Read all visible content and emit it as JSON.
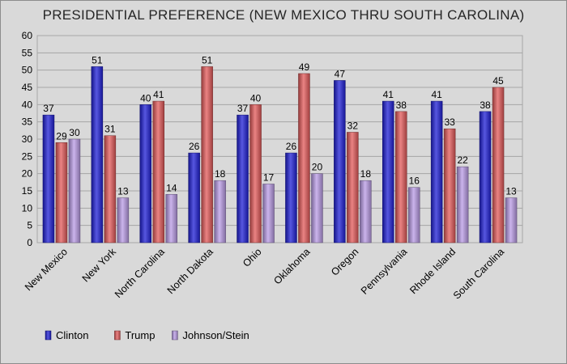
{
  "chart_data": {
    "type": "bar",
    "title": "PRESIDENTIAL PREFERENCE (NEW MEXICO THRU SOUTH CAROLINA)",
    "xlabel": "",
    "ylabel": "",
    "ylim": [
      0,
      60
    ],
    "yticks": [
      0,
      5,
      10,
      15,
      20,
      25,
      30,
      35,
      40,
      45,
      50,
      55,
      60
    ],
    "grid": true,
    "legend_position": "bottom-left",
    "categories": [
      "New Mexico",
      "New York",
      "North Carolina",
      "North Dakota",
      "Ohio",
      "Oklahoma",
      "Oregon",
      "Pennsylvania",
      "Rhode Island",
      "South Carolina"
    ],
    "series": [
      {
        "name": "Clinton",
        "color": "#1f1fd6",
        "values": [
          37,
          51,
          40,
          26,
          37,
          26,
          47,
          41,
          41,
          38
        ]
      },
      {
        "name": "Trump",
        "color": "#e35a5a",
        "values": [
          29,
          31,
          41,
          51,
          40,
          49,
          32,
          38,
          33,
          45
        ]
      },
      {
        "name": "Johnson/Stein",
        "color": "#b99be6",
        "values": [
          30,
          13,
          14,
          18,
          17,
          20,
          18,
          16,
          22,
          13
        ]
      }
    ]
  }
}
